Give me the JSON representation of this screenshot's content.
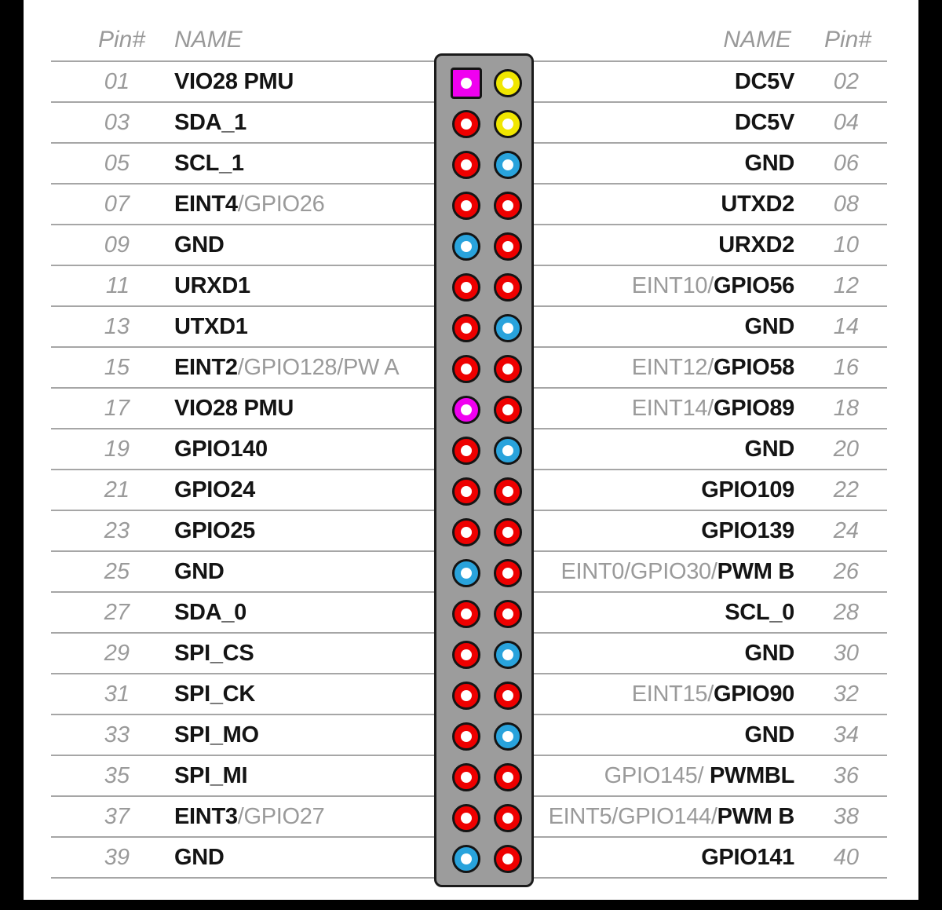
{
  "header": {
    "left_pin": "Pin#",
    "left_name": "NAME",
    "right_name": "NAME",
    "right_pin": "Pin#"
  },
  "colors": {
    "red": "#ee0000",
    "yellow": "#f0e600",
    "blue": "#29a3dc",
    "magenta": "#f000f0",
    "strip_gray": "#9c9c9c",
    "line_gray": "#a6a6a6",
    "text_black": "#141414",
    "text_gray": "#9a9a9a"
  },
  "rows": [
    {
      "l": {
        "pin": "01",
        "name": [
          {
            "t": "VIO28 PMU"
          }
        ],
        "pad": "magenta",
        "shape": "square"
      },
      "r": {
        "pin": "02",
        "name": [
          {
            "t": "DC5V"
          }
        ],
        "pad": "yellow"
      }
    },
    {
      "l": {
        "pin": "03",
        "name": [
          {
            "t": "SDA_1"
          }
        ],
        "pad": "red"
      },
      "r": {
        "pin": "04",
        "name": [
          {
            "t": "DC5V"
          }
        ],
        "pad": "yellow"
      }
    },
    {
      "l": {
        "pin": "05",
        "name": [
          {
            "t": "SCL_1"
          }
        ],
        "pad": "red"
      },
      "r": {
        "pin": "06",
        "name": [
          {
            "t": "GND"
          }
        ],
        "pad": "blue"
      }
    },
    {
      "l": {
        "pin": "07",
        "name": [
          {
            "t": "EINT4"
          },
          {
            "t": "/GPIO26",
            "dim": true
          }
        ],
        "pad": "red"
      },
      "r": {
        "pin": "08",
        "name": [
          {
            "t": "UTXD2"
          }
        ],
        "pad": "red"
      }
    },
    {
      "l": {
        "pin": "09",
        "name": [
          {
            "t": "GND"
          }
        ],
        "pad": "blue"
      },
      "r": {
        "pin": "10",
        "name": [
          {
            "t": "URXD2"
          }
        ],
        "pad": "red"
      }
    },
    {
      "l": {
        "pin": "11",
        "name": [
          {
            "t": "URXD1"
          }
        ],
        "pad": "red"
      },
      "r": {
        "pin": "12",
        "name": [
          {
            "t": "EINT10/",
            "dim": true
          },
          {
            "t": "GPIO56"
          }
        ],
        "pad": "red"
      }
    },
    {
      "l": {
        "pin": "13",
        "name": [
          {
            "t": "UTXD1"
          }
        ],
        "pad": "red"
      },
      "r": {
        "pin": "14",
        "name": [
          {
            "t": "GND"
          }
        ],
        "pad": "blue"
      }
    },
    {
      "l": {
        "pin": "15",
        "name": [
          {
            "t": "EINT2"
          },
          {
            "t": "/GPIO128/PW A",
            "dim": true
          }
        ],
        "pad": "red"
      },
      "r": {
        "pin": "16",
        "name": [
          {
            "t": "EINT12/",
            "dim": true
          },
          {
            "t": "GPIO58"
          }
        ],
        "pad": "red"
      }
    },
    {
      "l": {
        "pin": "17",
        "name": [
          {
            "t": "VIO28 PMU"
          }
        ],
        "pad": "magenta"
      },
      "r": {
        "pin": "18",
        "name": [
          {
            "t": "EINT14/",
            "dim": true
          },
          {
            "t": "GPIO89"
          }
        ],
        "pad": "red"
      }
    },
    {
      "l": {
        "pin": "19",
        "name": [
          {
            "t": "GPIO140"
          }
        ],
        "pad": "red"
      },
      "r": {
        "pin": "20",
        "name": [
          {
            "t": "GND"
          }
        ],
        "pad": "blue"
      }
    },
    {
      "l": {
        "pin": "21",
        "name": [
          {
            "t": "GPIO24"
          }
        ],
        "pad": "red"
      },
      "r": {
        "pin": "22",
        "name": [
          {
            "t": "GPIO109"
          }
        ],
        "pad": "red"
      }
    },
    {
      "l": {
        "pin": "23",
        "name": [
          {
            "t": "GPIO25"
          }
        ],
        "pad": "red"
      },
      "r": {
        "pin": "24",
        "name": [
          {
            "t": "GPIO139"
          }
        ],
        "pad": "red"
      }
    },
    {
      "l": {
        "pin": "25",
        "name": [
          {
            "t": "GND"
          }
        ],
        "pad": "blue"
      },
      "r": {
        "pin": "26",
        "name": [
          {
            "t": "EINT0/GPIO30/",
            "dim": true
          },
          {
            "t": "PWM B"
          }
        ],
        "pad": "red"
      }
    },
    {
      "l": {
        "pin": "27",
        "name": [
          {
            "t": "SDA_0"
          }
        ],
        "pad": "red"
      },
      "r": {
        "pin": "28",
        "name": [
          {
            "t": "SCL_0"
          }
        ],
        "pad": "red"
      }
    },
    {
      "l": {
        "pin": "29",
        "name": [
          {
            "t": "SPI_CS"
          }
        ],
        "pad": "red"
      },
      "r": {
        "pin": "30",
        "name": [
          {
            "t": "GND"
          }
        ],
        "pad": "blue"
      }
    },
    {
      "l": {
        "pin": "31",
        "name": [
          {
            "t": "SPI_CK"
          }
        ],
        "pad": "red"
      },
      "r": {
        "pin": "32",
        "name": [
          {
            "t": "EINT15/",
            "dim": true
          },
          {
            "t": "GPIO90"
          }
        ],
        "pad": "red"
      }
    },
    {
      "l": {
        "pin": "33",
        "name": [
          {
            "t": "SPI_MO"
          }
        ],
        "pad": "red"
      },
      "r": {
        "pin": "34",
        "name": [
          {
            "t": "GND"
          }
        ],
        "pad": "blue"
      }
    },
    {
      "l": {
        "pin": "35",
        "name": [
          {
            "t": "SPI_MI"
          }
        ],
        "pad": "red"
      },
      "r": {
        "pin": "36",
        "name": [
          {
            "t": "GPIO145/",
            "dim": true
          },
          {
            "t": " PWMBL"
          }
        ],
        "pad": "red"
      }
    },
    {
      "l": {
        "pin": "37",
        "name": [
          {
            "t": "EINT3"
          },
          {
            "t": "/GPIO27",
            "dim": true
          }
        ],
        "pad": "red"
      },
      "r": {
        "pin": "38",
        "name": [
          {
            "t": "EINT5/GPIO144/",
            "dim": true
          },
          {
            "t": "PWM B"
          }
        ],
        "pad": "red"
      }
    },
    {
      "l": {
        "pin": "39",
        "name": [
          {
            "t": "GND"
          }
        ],
        "pad": "blue"
      },
      "r": {
        "pin": "40",
        "name": [
          {
            "t": "GPIO141"
          }
        ],
        "pad": "red"
      }
    }
  ]
}
